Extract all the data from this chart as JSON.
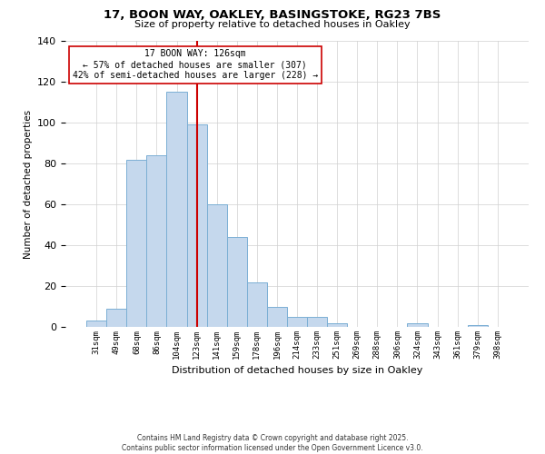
{
  "title_line1": "17, BOON WAY, OAKLEY, BASINGSTOKE, RG23 7BS",
  "title_line2": "Size of property relative to detached houses in Oakley",
  "xlabel": "Distribution of detached houses by size in Oakley",
  "ylabel": "Number of detached properties",
  "bar_labels": [
    "31sqm",
    "49sqm",
    "68sqm",
    "86sqm",
    "104sqm",
    "123sqm",
    "141sqm",
    "159sqm",
    "178sqm",
    "196sqm",
    "214sqm",
    "233sqm",
    "251sqm",
    "269sqm",
    "288sqm",
    "306sqm",
    "324sqm",
    "343sqm",
    "361sqm",
    "379sqm",
    "398sqm"
  ],
  "bar_values": [
    3,
    9,
    82,
    84,
    115,
    99,
    60,
    44,
    22,
    10,
    5,
    5,
    2,
    0,
    0,
    0,
    2,
    0,
    0,
    1,
    0
  ],
  "bar_color": "#c5d8ed",
  "bar_edge_color": "#7bafd4",
  "vline_x": 5.0,
  "vline_color": "#cc0000",
  "annotation_title": "17 BOON WAY: 126sqm",
  "annotation_line1": "← 57% of detached houses are smaller (307)",
  "annotation_line2": "42% of semi-detached houses are larger (228) →",
  "annotation_box_color": "#ffffff",
  "annotation_box_edge": "#cc0000",
  "ylim": [
    0,
    140
  ],
  "yticks": [
    0,
    20,
    40,
    60,
    80,
    100,
    120,
    140
  ],
  "footer_line1": "Contains HM Land Registry data © Crown copyright and database right 2025.",
  "footer_line2": "Contains public sector information licensed under the Open Government Licence v3.0."
}
